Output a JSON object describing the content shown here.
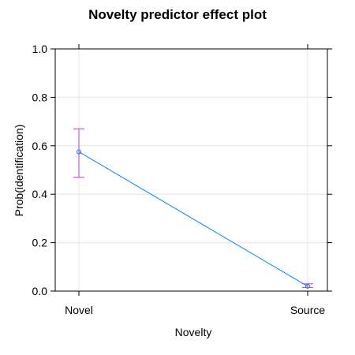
{
  "chart_data": {
    "type": "line",
    "title": "Novelty predictor effect plot",
    "xlabel": "Novelty",
    "ylabel": "Prob(identification)",
    "categories": [
      "Novel",
      "Source"
    ],
    "series": [
      {
        "values": [
          0.575,
          0.02
        ],
        "lower": [
          0.47,
          0.015
        ],
        "upper": [
          0.67,
          0.03
        ]
      }
    ],
    "ylim": [
      0,
      1.0
    ],
    "yticks": [
      "0.0",
      "0.2",
      "0.4",
      "0.6",
      "0.8",
      "1.0"
    ],
    "grid": true,
    "line_color": "#0080ff",
    "errorbar_color": "#cc33cc"
  }
}
